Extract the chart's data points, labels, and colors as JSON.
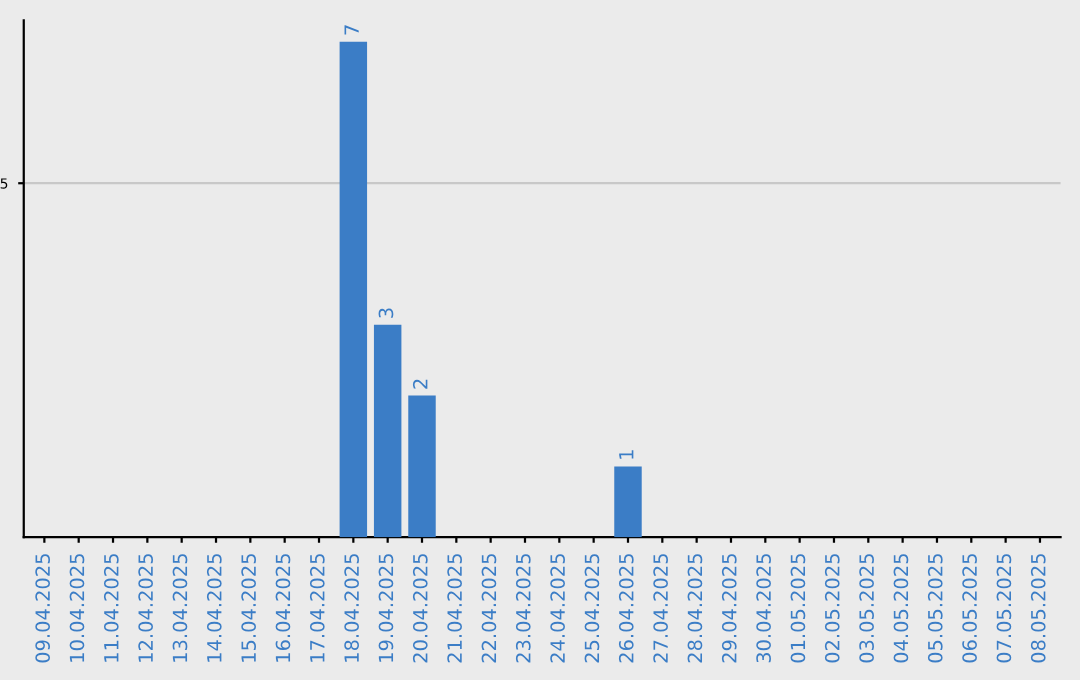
{
  "chart_data": {
    "type": "bar",
    "categories": [
      "09.04.2025",
      "10.04.2025",
      "11.04.2025",
      "12.04.2025",
      "13.04.2025",
      "14.04.2025",
      "15.04.2025",
      "16.04.2025",
      "17.04.2025",
      "18.04.2025",
      "19.04.2025",
      "20.04.2025",
      "21.04.2025",
      "22.04.2025",
      "23.04.2025",
      "24.04.2025",
      "25.04.2025",
      "26.04.2025",
      "27.04.2025",
      "28.04.2025",
      "29.04.2025",
      "30.04.2025",
      "01.05.2025",
      "02.05.2025",
      "03.05.2025",
      "04.05.2025",
      "05.05.2025",
      "06.05.2025",
      "07.05.2025",
      "08.05.2025"
    ],
    "values": [
      0,
      0,
      0,
      0,
      0,
      0,
      0,
      0,
      0,
      7,
      3,
      2,
      0,
      0,
      0,
      0,
      0,
      1,
      0,
      0,
      0,
      0,
      0,
      0,
      0,
      0,
      0,
      0,
      0,
      0
    ],
    "value_labels": [
      null,
      null,
      null,
      null,
      null,
      null,
      null,
      null,
      null,
      "7",
      "3",
      "2",
      null,
      null,
      null,
      null,
      null,
      "1",
      null,
      null,
      null,
      null,
      null,
      null,
      null,
      null,
      null,
      null,
      null,
      null
    ],
    "color": "#3b7dc6",
    "ylim": [
      0,
      7.3
    ],
    "yticks": [
      5
    ],
    "grid": "y",
    "legend": false
  }
}
